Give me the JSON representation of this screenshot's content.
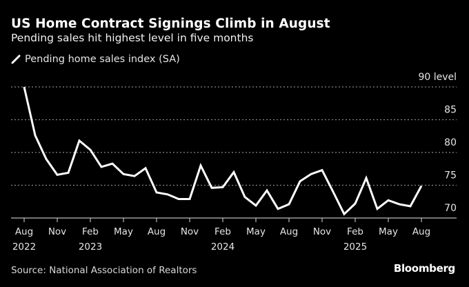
{
  "header": {
    "title": "US Home Contract Signings Climb in August",
    "subtitle": "Pending sales hit highest level in five months"
  },
  "legend": {
    "label": "Pending home sales index (SA)"
  },
  "footer": {
    "source": "Source: National Association of Realtors",
    "brand": "Bloomberg"
  },
  "colors": {
    "background": "#000000",
    "line": "#ffffff",
    "grid": "#888888",
    "axis": "#bbbbbb"
  },
  "chart_data": {
    "type": "line",
    "title": "US Home Contract Signings Climb in August",
    "subtitle": "Pending sales hit highest level in five months",
    "xlabel": "",
    "ylabel": "",
    "ylim": [
      70,
      90
    ],
    "yticks": [
      70,
      75,
      80,
      85,
      90
    ],
    "ytick_labels": [
      "70",
      "75",
      "80",
      "85",
      "90 level"
    ],
    "grid": true,
    "legend_position": "top-left",
    "x_ticks": [
      {
        "month": "Aug",
        "year": "2022",
        "index": 0
      },
      {
        "month": "Nov",
        "year": "",
        "index": 3
      },
      {
        "month": "Feb",
        "year": "2023",
        "index": 6
      },
      {
        "month": "May",
        "year": "",
        "index": 9
      },
      {
        "month": "Aug",
        "year": "",
        "index": 12
      },
      {
        "month": "Nov",
        "year": "",
        "index": 15
      },
      {
        "month": "Feb",
        "year": "2024",
        "index": 18
      },
      {
        "month": "May",
        "year": "",
        "index": 21
      },
      {
        "month": "Aug",
        "year": "",
        "index": 24
      },
      {
        "month": "Nov",
        "year": "",
        "index": 27
      },
      {
        "month": "Feb",
        "year": "2025",
        "index": 30
      },
      {
        "month": "May",
        "year": "",
        "index": 33
      },
      {
        "month": "Aug",
        "year": "",
        "index": 36
      }
    ],
    "x": [
      "2022-08",
      "2022-09",
      "2022-10",
      "2022-11",
      "2022-12",
      "2023-01",
      "2023-02",
      "2023-03",
      "2023-04",
      "2023-05",
      "2023-06",
      "2023-07",
      "2023-08",
      "2023-09",
      "2023-10",
      "2023-11",
      "2023-12",
      "2024-01",
      "2024-02",
      "2024-03",
      "2024-04",
      "2024-05",
      "2024-06",
      "2024-07",
      "2024-08",
      "2024-09",
      "2024-10",
      "2024-11",
      "2024-12",
      "2025-01",
      "2025-02",
      "2025-03",
      "2025-04",
      "2025-05",
      "2025-06",
      "2025-07",
      "2025-08"
    ],
    "series": [
      {
        "name": "Pending home sales index (SA)",
        "values": [
          90.0,
          82.6,
          79.0,
          76.6,
          76.9,
          81.8,
          80.4,
          77.8,
          78.3,
          76.7,
          76.4,
          77.6,
          73.9,
          73.6,
          72.9,
          72.9,
          78.0,
          74.6,
          74.7,
          77.0,
          73.2,
          71.9,
          74.2,
          71.4,
          72.1,
          75.6,
          76.7,
          77.3,
          74.0,
          70.6,
          72.2,
          76.1,
          71.4,
          72.7,
          72.1,
          71.8,
          74.9
        ]
      }
    ]
  }
}
